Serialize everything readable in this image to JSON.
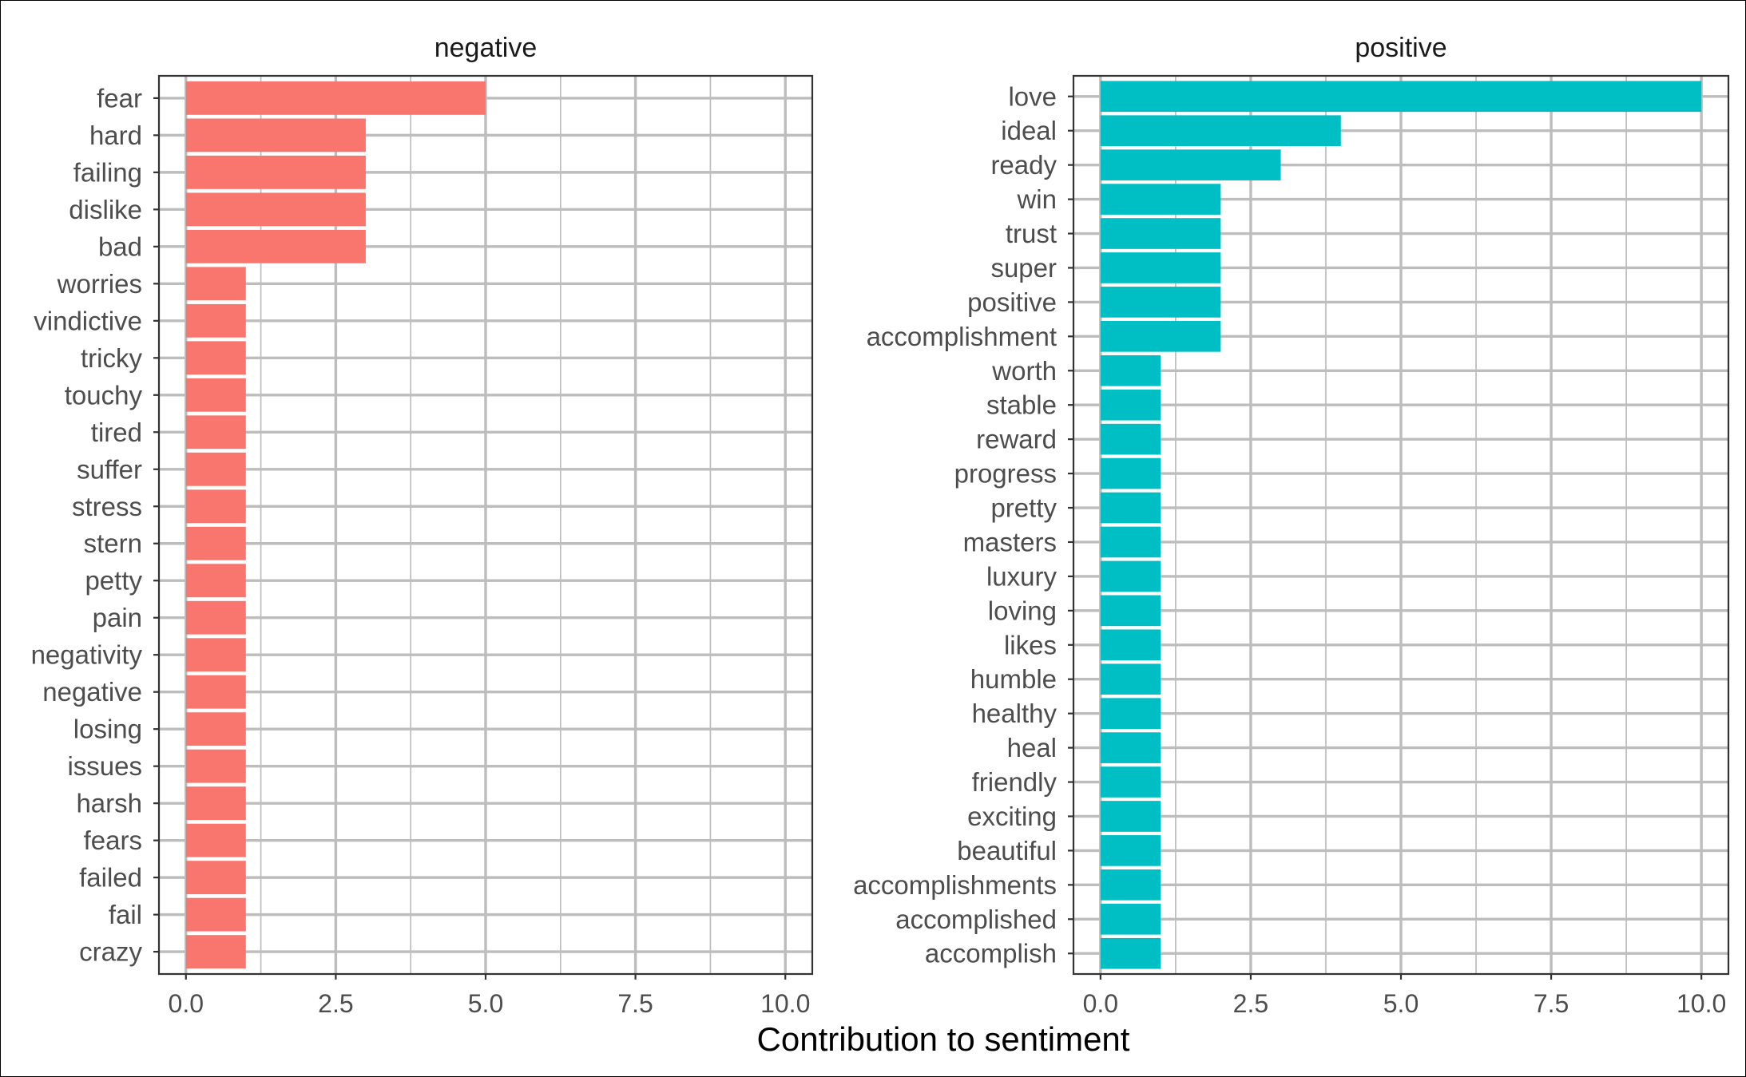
{
  "chart_data": {
    "type": "bar",
    "orientation": "horizontal",
    "xlabel": "Contribution to sentiment",
    "xlim": [
      0,
      10
    ],
    "xticks": [
      "0.0",
      "2.5",
      "5.0",
      "7.5",
      "10.0"
    ],
    "grid": true,
    "panels": [
      {
        "title": "negative",
        "color": "#F8766D",
        "categories": [
          "fear",
          "hard",
          "failing",
          "dislike",
          "bad",
          "worries",
          "vindictive",
          "tricky",
          "touchy",
          "tired",
          "suffer",
          "stress",
          "stern",
          "petty",
          "pain",
          "negativity",
          "negative",
          "losing",
          "issues",
          "harsh",
          "fears",
          "failed",
          "fail",
          "crazy"
        ],
        "values": [
          5,
          3,
          3,
          3,
          3,
          1,
          1,
          1,
          1,
          1,
          1,
          1,
          1,
          1,
          1,
          1,
          1,
          1,
          1,
          1,
          1,
          1,
          1,
          1
        ]
      },
      {
        "title": "positive",
        "color": "#00BFC4",
        "categories": [
          "love",
          "ideal",
          "ready",
          "win",
          "trust",
          "super",
          "positive",
          "accomplishment",
          "worth",
          "stable",
          "reward",
          "progress",
          "pretty",
          "masters",
          "luxury",
          "loving",
          "likes",
          "humble",
          "healthy",
          "heal",
          "friendly",
          "exciting",
          "beautiful",
          "accomplishments",
          "accomplished",
          "accomplish"
        ],
        "values": [
          10,
          4,
          3,
          2,
          2,
          2,
          2,
          2,
          1,
          1,
          1,
          1,
          1,
          1,
          1,
          1,
          1,
          1,
          1,
          1,
          1,
          1,
          1,
          1,
          1,
          1
        ]
      }
    ]
  }
}
